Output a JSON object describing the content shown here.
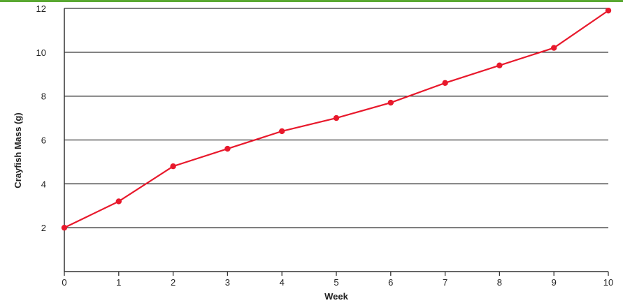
{
  "chart_data": {
    "type": "line",
    "title": "",
    "xlabel": "Week",
    "ylabel": "Crayfish Mass (g)",
    "x": [
      0,
      1,
      2,
      3,
      4,
      5,
      6,
      7,
      8,
      9,
      10
    ],
    "series": [
      {
        "values": [
          2.0,
          3.2,
          4.8,
          5.6,
          6.4,
          7.0,
          7.7,
          8.6,
          9.4,
          10.2,
          11.9
        ]
      }
    ],
    "xlim": [
      0,
      10
    ],
    "ylim": [
      0,
      12
    ],
    "x_ticks": [
      0,
      1,
      2,
      3,
      4,
      5,
      6,
      7,
      8,
      9,
      10
    ],
    "y_ticks": [
      2,
      4,
      6,
      8,
      10,
      12
    ],
    "grid": "horizontal",
    "legend": "none",
    "series_color": "#e8192c",
    "grid_color": "#333333",
    "top_bar_color": "#5aa832"
  }
}
